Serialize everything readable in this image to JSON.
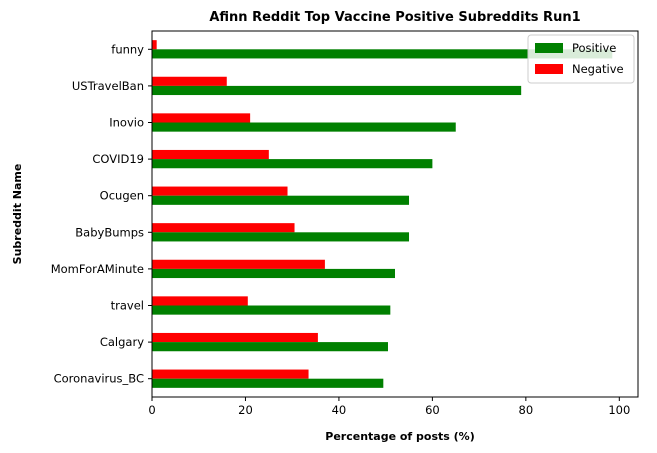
{
  "chart_data": {
    "type": "bar",
    "orientation": "horizontal",
    "title": "Afinn Reddit Top Vaccine Positive Subreddits Run1",
    "xlabel": "Percentage of posts (%)",
    "ylabel": "Subreddit Name",
    "xlim": [
      0,
      104
    ],
    "xticks": [
      0,
      20,
      40,
      60,
      80,
      100
    ],
    "grid": false,
    "legend_position": "top-right",
    "categories": [
      "funny",
      "USTravelBan",
      "Inovio",
      "COVID19",
      "Ocugen",
      "BabyBumps",
      "MomForAMinute",
      "travel",
      "Calgary",
      "Coronavirus_BC"
    ],
    "series": [
      {
        "name": "Positive",
        "color": "#008000",
        "values": [
          98.5,
          79,
          65,
          60,
          55,
          55,
          52,
          51,
          50.5,
          49.5
        ]
      },
      {
        "name": "Negative",
        "color": "#ff0000",
        "values": [
          1,
          16,
          21,
          25,
          29,
          30.5,
          37,
          20.5,
          35.5,
          33.5
        ]
      }
    ]
  }
}
